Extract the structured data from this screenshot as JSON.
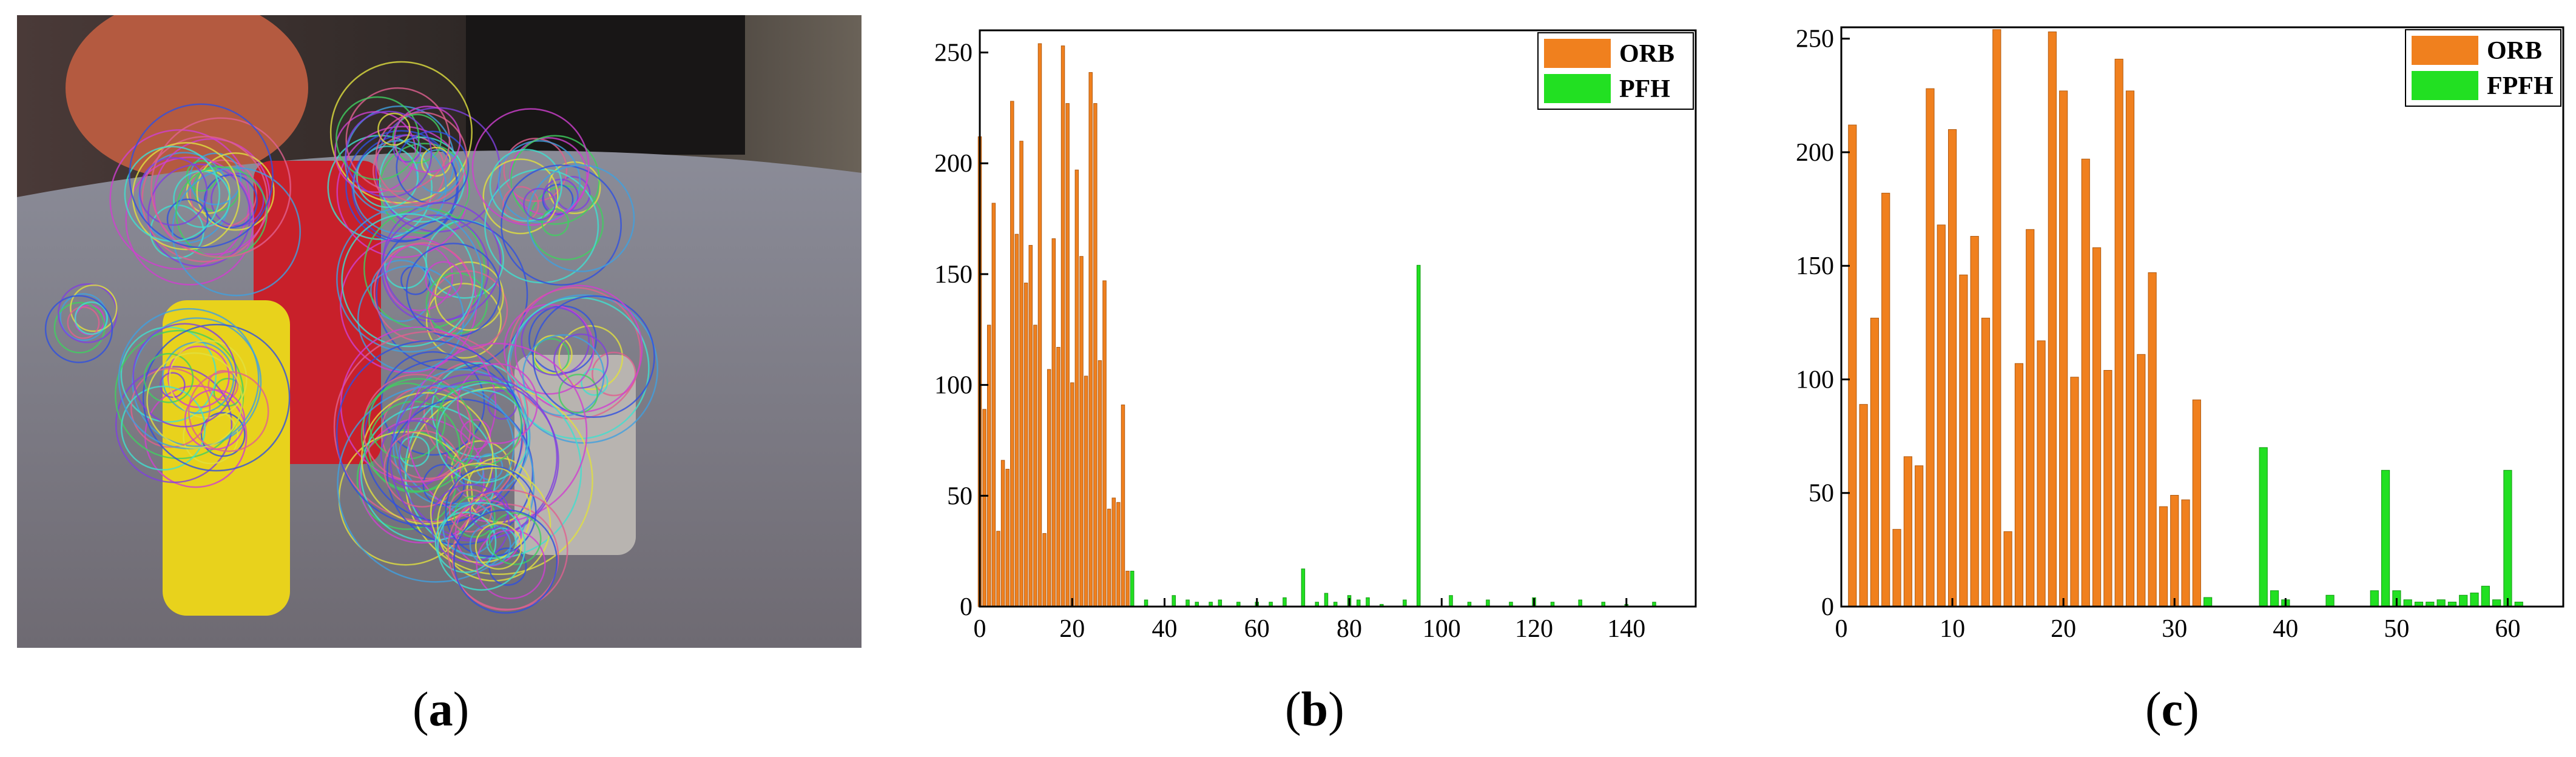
{
  "panels": {
    "a": {
      "caption_open": "(",
      "caption_letter": "a",
      "caption_close": ")"
    },
    "b": {
      "caption_open": "(",
      "caption_letter": "b",
      "caption_close": ")"
    },
    "c": {
      "caption_open": "(",
      "caption_letter": "c",
      "caption_close": ")"
    }
  },
  "photo": {
    "description_icon": "keypoint-circles-photo"
  },
  "chart_data": [
    {
      "id": "b",
      "type": "bar",
      "title": "",
      "xlabel": "",
      "ylabel": "",
      "xlim": [
        0,
        155
      ],
      "ylim": [
        0,
        260
      ],
      "xticks": [
        0,
        20,
        40,
        60,
        80,
        100,
        120,
        140
      ],
      "yticks": [
        0,
        50,
        100,
        150,
        200,
        250
      ],
      "grid": false,
      "legend_position": "top-right",
      "series": [
        {
          "name": "ORB",
          "color": "#f0801e",
          "x": [
            0,
            1,
            2,
            3,
            4,
            5,
            6,
            7,
            8,
            9,
            10,
            11,
            12,
            13,
            14,
            15,
            16,
            17,
            18,
            19,
            20,
            21,
            22,
            23,
            24,
            25,
            26,
            27,
            28,
            29,
            30,
            31,
            32
          ],
          "values": [
            212,
            89,
            127,
            182,
            34,
            66,
            62,
            228,
            168,
            210,
            146,
            163,
            127,
            254,
            33,
            107,
            166,
            117,
            253,
            227,
            101,
            197,
            158,
            104,
            241,
            227,
            111,
            147,
            44,
            49,
            47,
            91,
            16
          ]
        },
        {
          "name": "PFH",
          "color": "#22e022",
          "x": [
            33,
            36,
            42,
            45,
            47,
            50,
            52,
            56,
            60,
            63,
            66,
            70,
            73,
            75,
            77,
            80,
            82,
            84,
            87,
            92,
            95,
            102,
            106,
            110,
            115,
            120,
            124,
            130,
            135,
            140,
            146
          ],
          "values": [
            16,
            3,
            5,
            3,
            2,
            2,
            3,
            2,
            2,
            2,
            4,
            17,
            2,
            6,
            2,
            5,
            3,
            4,
            1,
            3,
            154,
            5,
            2,
            3,
            2,
            4,
            2,
            3,
            2,
            1,
            2
          ]
        }
      ]
    },
    {
      "id": "c",
      "type": "bar",
      "title": "",
      "xlabel": "",
      "ylabel": "",
      "xlim": [
        0,
        65
      ],
      "ylim": [
        0,
        255
      ],
      "xticks": [
        0,
        10,
        20,
        30,
        40,
        50,
        60
      ],
      "yticks": [
        0,
        50,
        100,
        150,
        200,
        250
      ],
      "grid": false,
      "legend_position": "top-right",
      "series": [
        {
          "name": "ORB",
          "color": "#f0801e",
          "x": [
            1,
            2,
            3,
            4,
            5,
            6,
            7,
            8,
            9,
            10,
            11,
            12,
            13,
            14,
            15,
            16,
            17,
            18,
            19,
            20,
            21,
            22,
            23,
            24,
            25,
            26,
            27,
            28,
            29,
            30,
            31,
            32
          ],
          "values": [
            212,
            89,
            127,
            182,
            34,
            66,
            62,
            228,
            168,
            210,
            146,
            163,
            127,
            254,
            33,
            107,
            166,
            117,
            253,
            227,
            101,
            197,
            158,
            104,
            241,
            227,
            111,
            147,
            44,
            49,
            47,
            91
          ]
        },
        {
          "name": "FPFH",
          "color": "#22e022",
          "x": [
            33,
            38,
            39,
            40,
            44,
            48,
            49,
            50,
            51,
            52,
            53,
            54,
            55,
            56,
            57,
            58,
            59,
            60,
            61
          ],
          "values": [
            4,
            70,
            7,
            3,
            5,
            7,
            60,
            7,
            3,
            2,
            2,
            3,
            2,
            5,
            6,
            9,
            3,
            60,
            2
          ]
        }
      ]
    }
  ]
}
